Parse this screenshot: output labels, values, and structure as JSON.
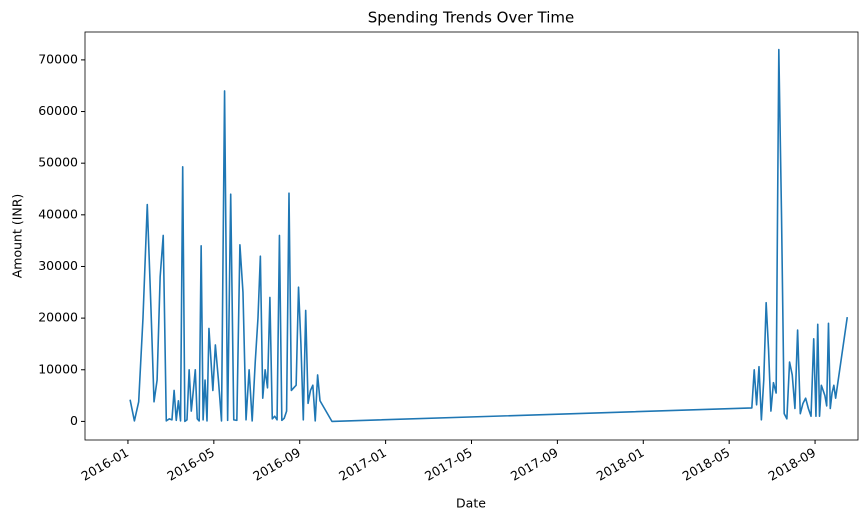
{
  "chart_data": {
    "type": "line",
    "title": "Spending Trends Over Time",
    "x_label": "Date",
    "y_label": "Amount (INR)",
    "color": "#1f77b4",
    "x": [
      "2016-01",
      "2016-01",
      "2016-01",
      "2016-01",
      "2016-01",
      "2016-02",
      "2016-02",
      "2016-02",
      "2016-02",
      "2016-02",
      "2016-02",
      "2016-02",
      "2016-03",
      "2016-03",
      "2016-03",
      "2016-03",
      "2016-03",
      "2016-03",
      "2016-03",
      "2016-03",
      "2016-03",
      "2016-03",
      "2016-04",
      "2016-04",
      "2016-04",
      "2016-04",
      "2016-04",
      "2016-04",
      "2016-04",
      "2016-04",
      "2016-04",
      "2016-04",
      "2016-04",
      "2016-05",
      "2016-05",
      "2016-05",
      "2016-05",
      "2016-05",
      "2016-05",
      "2016-05",
      "2016-06",
      "2016-06",
      "2016-06",
      "2016-06",
      "2016-06",
      "2016-06",
      "2016-06",
      "2016-07",
      "2016-07",
      "2016-07",
      "2016-07",
      "2016-07",
      "2016-07",
      "2016-07",
      "2016-07",
      "2016-07",
      "2016-08",
      "2016-08",
      "2016-08",
      "2016-08",
      "2016-08",
      "2016-08",
      "2016-08",
      "2016-08",
      "2016-08",
      "2016-09",
      "2016-09",
      "2016-09",
      "2016-09",
      "2016-09",
      "2016-09",
      "2016-09",
      "2016-09",
      "2016-09",
      "2016-10",
      "2018-06",
      "2018-06",
      "2018-06",
      "2018-06",
      "2018-06",
      "2018-06",
      "2018-06",
      "2018-06",
      "2018-06",
      "2018-07",
      "2018-07",
      "2018-07",
      "2018-07",
      "2018-07",
      "2018-07",
      "2018-07",
      "2018-07",
      "2018-08",
      "2018-08",
      "2018-08",
      "2018-08",
      "2018-08",
      "2018-08",
      "2018-08",
      "2018-08",
      "2018-09",
      "2018-09",
      "2018-09",
      "2018-09",
      "2018-09",
      "2018-09",
      "2018-09",
      "2018-09",
      "2018-09",
      "2018-09",
      "2018-09",
      "2018-09",
      "2018-10"
    ],
    "values": [
      4200,
      100,
      3800,
      20000,
      42000,
      22000,
      3800,
      8000,
      28000,
      36000,
      100,
      500,
      300,
      6000,
      200,
      4000,
      100,
      49300,
      0,
      300,
      10000,
      2000,
      6000,
      10000,
      500,
      100,
      34000,
      300,
      8000,
      100,
      18000,
      12000,
      6000,
      14800,
      8000,
      100,
      64000,
      200,
      44000,
      300,
      200,
      34200,
      25000,
      300,
      10000,
      100,
      11500,
      20000,
      32000,
      4500,
      10000,
      6500,
      24000,
      500,
      1000,
      300,
      36000,
      200,
      600,
      2000,
      44200,
      6000,
      6500,
      7000,
      26000,
      15000,
      300,
      21500,
      3500,
      6000,
      7000,
      100,
      9000,
      4000,
      0,
      2600,
      10000,
      3200,
      10600,
      300,
      8000,
      23000,
      14000,
      2000,
      7500,
      5500,
      72000,
      40000,
      1500,
      500,
      11500,
      9000,
      2500,
      17700,
      1500,
      3500,
      4500,
      2500,
      1000,
      16000,
      1000,
      18800,
      1000,
      7000,
      6000,
      5000,
      3000,
      19000,
      2500,
      5500,
      7000,
      4500,
      20200
    ],
    "xlim": [
      "2015-11",
      "2018-11"
    ],
    "xticks": [
      "2016-01",
      "2016-05",
      "2016-09",
      "2017-01",
      "2017-05",
      "2017-09",
      "2018-01",
      "2018-05",
      "2018-09"
    ],
    "ylim": [
      -3600,
      75400
    ],
    "yticks": [
      0,
      10000,
      20000,
      30000,
      40000,
      50000,
      60000,
      70000
    ]
  }
}
